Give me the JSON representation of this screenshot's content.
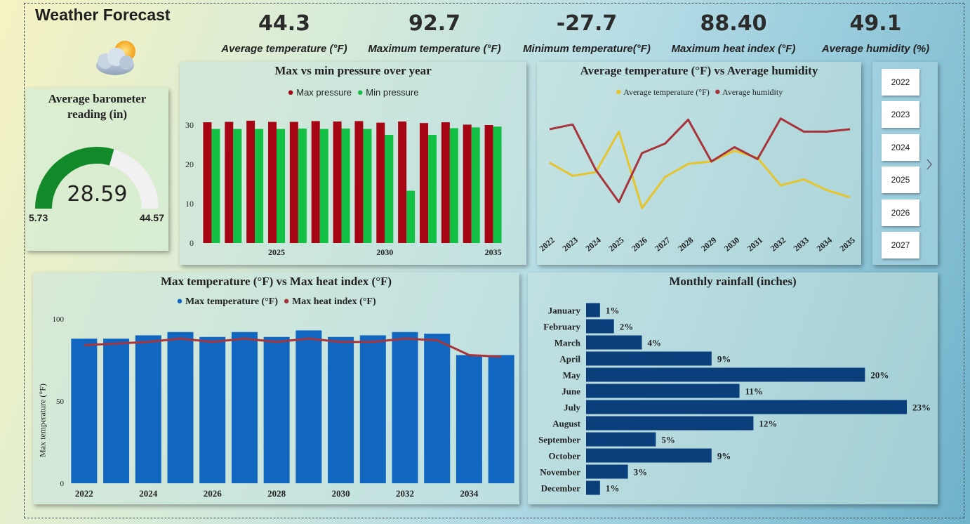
{
  "title": "Weather Forecast",
  "kpis": [
    {
      "value": "44.3",
      "label": "Average temperature (°F)"
    },
    {
      "value": "92.7",
      "label": "Maximum temperature (°F)"
    },
    {
      "value": "-27.7",
      "label": "Minimum temperature(°F)"
    },
    {
      "value": "88.40",
      "label": "Maximum heat index (°F)"
    },
    {
      "value": "49.1",
      "label": "Average humidity (%)"
    }
  ],
  "weather_icon": "partly-cloudy-icon",
  "gauge": {
    "title": "Average barometer reading (in)",
    "value": "28.59",
    "min": "5.73",
    "max": "44.57",
    "fraction": 0.5896,
    "fill_color": "#128a2a"
  },
  "years": [
    "2022",
    "2023",
    "2024",
    "2025",
    "2026",
    "2027"
  ],
  "colors": {
    "max_pressure": "#a60514",
    "min_pressure": "#12c044",
    "avg_temp": "#e6c42e",
    "avg_humidity": "#a8343b",
    "max_temp": "#1166c0",
    "heat_index": "#a8343b",
    "rainfall": "#0b3f7c"
  },
  "chart_data": [
    {
      "type": "bar",
      "title": "Max vs min pressure over year",
      "x": [
        2022,
        2023,
        2024,
        2025,
        2026,
        2027,
        2028,
        2029,
        2030,
        2031,
        2032,
        2033,
        2034,
        2035
      ],
      "xticks": [
        2025,
        2030,
        2035
      ],
      "ylim": [
        0,
        35
      ],
      "yticks": [
        0,
        10,
        20,
        30
      ],
      "series": [
        {
          "name": "Max pressure",
          "values": [
            30.7,
            30.8,
            31.1,
            30.8,
            30.8,
            31.0,
            30.9,
            31.0,
            30.6,
            30.9,
            30.5,
            30.7,
            30.1,
            30.0
          ]
        },
        {
          "name": "Min pressure",
          "values": [
            29.0,
            29.0,
            29.0,
            29.0,
            29.1,
            29.0,
            29.1,
            29.0,
            27.5,
            13.3,
            27.5,
            29.2,
            29.4,
            29.6
          ]
        }
      ]
    },
    {
      "type": "line",
      "title": "Average temperature (°F) vs Average humidity",
      "x": [
        "2022",
        "2023",
        "2024",
        "2025",
        "2026",
        "2027",
        "2028",
        "2029",
        "2030",
        "2031",
        "2032",
        "2033",
        "2034",
        "2035"
      ],
      "ylim": [
        0,
        100
      ],
      "series": [
        {
          "name": "Average temperature (°F)",
          "values": [
            52,
            41,
            44,
            78,
            14,
            40,
            51,
            53,
            62,
            56,
            33,
            38,
            29,
            23
          ]
        },
        {
          "name": "Average humidity",
          "values": [
            80,
            84,
            46,
            19,
            60,
            68,
            88,
            53,
            65,
            55,
            89,
            78,
            78,
            80
          ]
        }
      ]
    },
    {
      "type": "bar",
      "title": "Max temperature (°F) vs Max heat index (°F)",
      "ylabel": "Max temperature (°F)",
      "x": [
        2022,
        2023,
        2024,
        2025,
        2026,
        2027,
        2028,
        2029,
        2030,
        2031,
        2032,
        2033,
        2034,
        2035
      ],
      "xticks": [
        2022,
        2024,
        2026,
        2028,
        2030,
        2032,
        2034
      ],
      "ylim": [
        0,
        100
      ],
      "yticks": [
        0,
        50,
        100
      ],
      "series": [
        {
          "name": "Max temperature (°F)",
          "type": "bar",
          "values": [
            88,
            88,
            90,
            92,
            89,
            92,
            89,
            93,
            89,
            90,
            92,
            91,
            78,
            78
          ]
        },
        {
          "name": "Max heat index (°F)",
          "type": "line",
          "values": [
            84,
            85,
            86,
            88,
            86,
            88,
            86,
            88,
            86,
            86,
            88,
            87,
            78,
            77
          ]
        }
      ]
    },
    {
      "type": "bar",
      "orientation": "horizontal",
      "title": "Monthly rainfall (inches)",
      "categories": [
        "January",
        "February",
        "March",
        "April",
        "May",
        "June",
        "July",
        "August",
        "September",
        "October",
        "November",
        "December"
      ],
      "values": [
        1,
        2,
        4,
        9,
        20,
        11,
        23,
        12,
        5,
        9,
        3,
        1
      ],
      "labels": [
        "1%",
        "2%",
        "4%",
        "9%",
        "20%",
        "11%",
        "23%",
        "12%",
        "5%",
        "9%",
        "3%",
        "1%"
      ]
    }
  ]
}
